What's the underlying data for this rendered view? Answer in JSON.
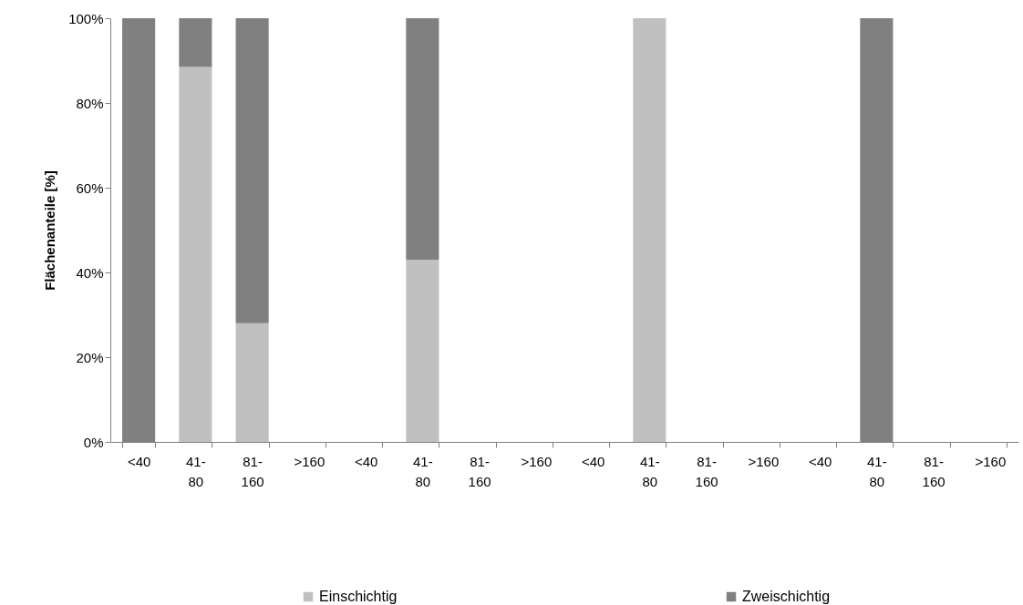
{
  "chart_data": {
    "type": "bar",
    "stacked": true,
    "ylabel": "Flächenanteile [%]",
    "categories": [
      "<40",
      "41-80",
      "81-160",
      ">160",
      "<40",
      "41-80",
      "81-160",
      ">160",
      "<40",
      "41-80",
      "81-160",
      ">160",
      "<40",
      "41-80",
      "81-160",
      ">160"
    ],
    "series": [
      {
        "name": "Einschichtig",
        "color": "#c0c0c0",
        "values": [
          0,
          88.5,
          28,
          0,
          0,
          43,
          0,
          0,
          0,
          100,
          0,
          0,
          0,
          0,
          0,
          0
        ]
      },
      {
        "name": "Zweischichtig",
        "color": "#808080",
        "values": [
          100,
          11.5,
          72,
          0,
          0,
          57,
          0,
          0,
          0,
          0,
          0,
          0,
          0,
          100,
          0,
          0
        ]
      }
    ],
    "ylim": [
      0,
      100
    ],
    "yticks": [
      {
        "value": 0,
        "label": "0%"
      },
      {
        "value": 20,
        "label": "20%"
      },
      {
        "value": 40,
        "label": "40%"
      },
      {
        "value": 60,
        "label": "60%"
      },
      {
        "value": 80,
        "label": "80%"
      },
      {
        "value": 100,
        "label": "100%"
      }
    ],
    "grid": false,
    "legend": "bottom"
  }
}
